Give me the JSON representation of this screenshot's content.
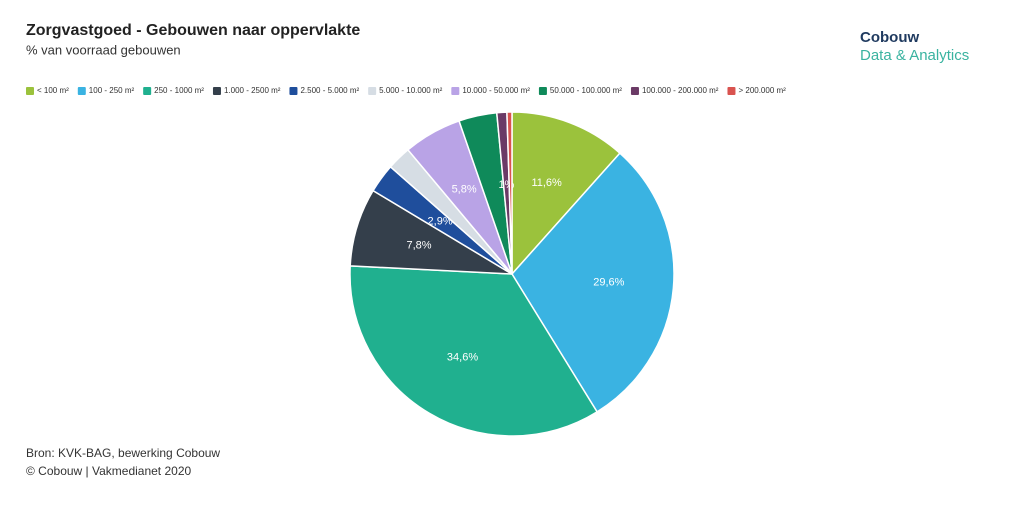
{
  "chart_data": {
    "type": "pie",
    "title": "Zorgvastgoed - Gebouwen naar oppervlakte",
    "subtitle": "% van voorraad gebouwen",
    "categories": [
      "< 100 m²",
      "100 - 250 m²",
      "250 - 1000 m²",
      "1.000 - 2500 m²",
      "2.500 - 5.000 m²",
      "5.000 - 10.000 m²",
      "10.000 - 50.000 m²",
      "50.000 - 100.000 m²",
      "100.000 - 200.000 m²",
      "> 200.000 m²"
    ],
    "values": [
      11.6,
      29.6,
      34.6,
      7.8,
      2.9,
      2.4,
      5.8,
      3.8,
      1,
      0.5
    ],
    "value_labels": [
      "11,6%",
      "29,6%",
      "34,6%",
      "7,8%",
      "2,9%",
      null,
      "5,8%",
      null,
      "1%",
      null
    ],
    "colors": [
      "#9bc23c",
      "#3ab3e2",
      "#20b08f",
      "#343f4b",
      "#1f4e9c",
      "#d6dde4",
      "#b9a3e6",
      "#0f8a5a",
      "#6b3a66",
      "#d9534f"
    ],
    "legend": "top-left",
    "source": [
      "Bron: KVK-BAG, bewerking Cobouw",
      "© Cobouw | Vakmedianet 2020"
    ],
    "logo": [
      "Cobouw",
      "Data & Analytics"
    ]
  }
}
